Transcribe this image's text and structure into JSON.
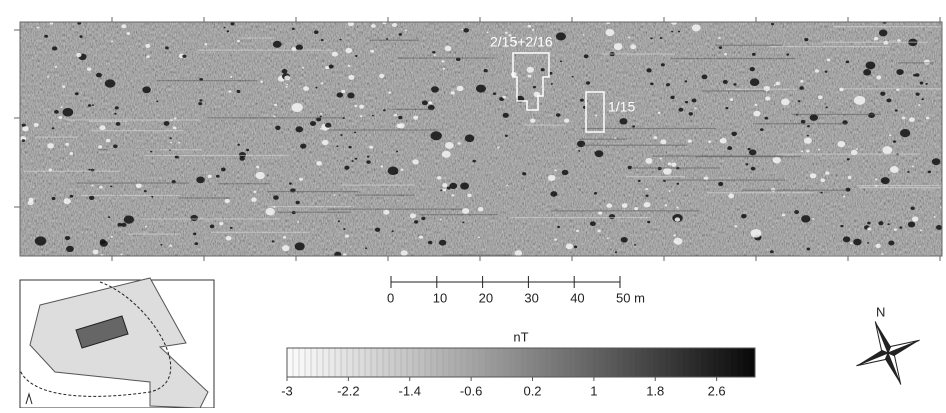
{
  "map": {
    "annotations": [
      {
        "label": "2/15+2/16"
      },
      {
        "label": "1/15"
      }
    ]
  },
  "scale_bar": {
    "ticks": [
      0,
      10,
      20,
      30,
      40,
      {
        "value": 50,
        "label": "50 m"
      }
    ],
    "lim": [
      0,
      50
    ]
  },
  "color_bar": {
    "title": "nT",
    "lim": [
      -3,
      3.1
    ],
    "ticks": [
      -3,
      -2.2,
      -1.4,
      -0.6,
      0.2,
      1,
      1.8,
      2.6
    ]
  },
  "north_arrow": {
    "label": "N"
  }
}
